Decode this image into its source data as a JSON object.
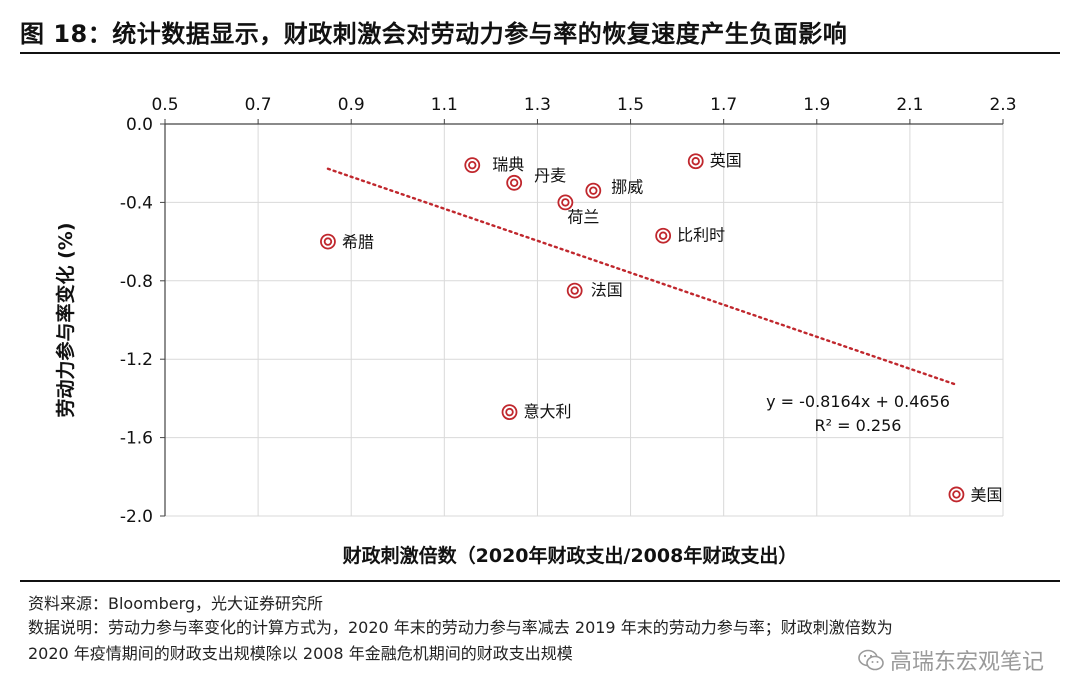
{
  "title": "图 18：统计数据显示，财政刺激会对劳动力参与率的恢复速度产生负面影响",
  "chart_data": {
    "type": "scatter",
    "title": "图 18：统计数据显示，财政刺激会对劳动力参与率的恢复速度产生负面影响",
    "xlabel": "财政刺激倍数（2020年财政支出/2008年财政支出）",
    "ylabel": "劳动力参与率变化 (%)",
    "xlim": [
      0.5,
      2.3
    ],
    "ylim": [
      -2.0,
      0.0
    ],
    "xticks": [
      "0.5",
      "0.7",
      "0.9",
      "1.1",
      "1.3",
      "1.5",
      "1.7",
      "1.9",
      "2.1",
      "2.3"
    ],
    "yticks": [
      "0.0",
      "-0.4",
      "-0.8",
      "-1.2",
      "-1.6",
      "-2.0"
    ],
    "grid": "vertical",
    "points": [
      {
        "name": "瑞典",
        "x": 1.16,
        "y": -0.21
      },
      {
        "name": "丹麦",
        "x": 1.25,
        "y": -0.3
      },
      {
        "name": "挪威",
        "x": 1.42,
        "y": -0.34
      },
      {
        "name": "荷兰",
        "x": 1.36,
        "y": -0.4
      },
      {
        "name": "英国",
        "x": 1.64,
        "y": -0.19
      },
      {
        "name": "希腊",
        "x": 0.85,
        "y": -0.6
      },
      {
        "name": "比利时",
        "x": 1.57,
        "y": -0.57
      },
      {
        "name": "法国",
        "x": 1.38,
        "y": -0.85
      },
      {
        "name": "意大利",
        "x": 1.24,
        "y": -1.47
      },
      {
        "name": "美国",
        "x": 2.2,
        "y": -1.89
      }
    ],
    "trendline": {
      "slope": -0.8164,
      "intercept": 0.4656,
      "x_range": [
        0.85,
        2.2
      ]
    },
    "equation": "y = -0.8164x + 0.4656",
    "r2_label": "R² = 0.256",
    "colors": {
      "marker": "#c0272d",
      "trend": "#c0272d",
      "grid": "#d9d9d9"
    }
  },
  "footer": {
    "source": "资料来源：Bloomberg，光大证券研究所",
    "note1": "数据说明：劳动力参与率变化的计算方式为，2020 年末的劳动力参与率减去 2019 年末的劳动力参与率；财政刺激倍数为",
    "note2": "2020 年疫情期间的财政支出规模除以 2008 年金融危机期间的财政支出规模"
  },
  "watermark": "高瑞东宏观笔记"
}
